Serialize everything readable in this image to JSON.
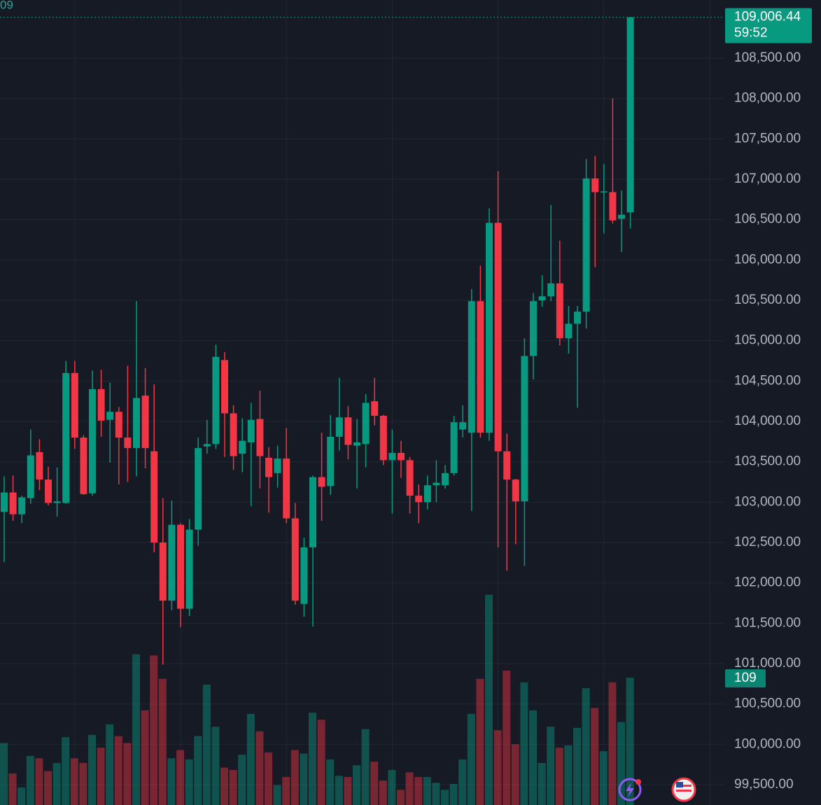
{
  "chart_data": {
    "type": "candlestick",
    "corner_text": "09",
    "open": [
      102880,
      103120,
      102850,
      103050,
      103620,
      103280,
      102990,
      102990,
      104600,
      103800,
      103110,
      104400,
      104020,
      104120,
      103800,
      103670,
      104320,
      103630,
      102500,
      101780,
      102720,
      101680,
      102660,
      103690,
      103720,
      104760,
      104100,
      103600,
      103740,
      104030,
      103550,
      103360,
      103540,
      102800,
      101740,
      102440,
      103310,
      103200,
      103810,
      104050,
      103700,
      103720,
      104250,
      104070,
      103520,
      103610,
      103520,
      103080,
      103000,
      103210,
      103210,
      103360,
      103900,
      103860,
      105490,
      103860,
      106460,
      103630,
      103280,
      103010,
      104810,
      105500,
      105550,
      105710,
      105030,
      105210,
      105360,
      107010,
      106840,
      106840,
      106510,
      106590
    ],
    "high": [
      103320,
      103330,
      103080,
      103900,
      103780,
      103440,
      103430,
      104750,
      104750,
      103830,
      104630,
      104640,
      104480,
      104180,
      104690,
      105490,
      104660,
      104460,
      103050,
      103020,
      102740,
      102790,
      103800,
      104020,
      104950,
      104860,
      104200,
      104040,
      104230,
      104380,
      103680,
      103700,
      103920,
      102990,
      102560,
      103330,
      103860,
      104080,
      104540,
      104190,
      104030,
      104340,
      104540,
      104080,
      103900,
      103760,
      103560,
      103220,
      103330,
      103520,
      103460,
      104070,
      104200,
      105640,
      105930,
      106640,
      107100,
      103850,
      103290,
      105030,
      105590,
      105810,
      106680,
      106240,
      105430,
      105430,
      107250,
      107290,
      107190,
      108000,
      106860,
      109006.44
    ],
    "low": [
      102260,
      102770,
      102740,
      102980,
      103150,
      102960,
      102820,
      102980,
      103660,
      103090,
      103080,
      103810,
      103490,
      103220,
      103250,
      103320,
      103420,
      102380,
      100990,
      101660,
      101450,
      101590,
      102460,
      103600,
      103660,
      103560,
      103400,
      103370,
      102950,
      103170,
      102870,
      103180,
      102740,
      101730,
      101580,
      101460,
      102770,
      103090,
      103640,
      103530,
      103170,
      103430,
      103950,
      103460,
      102860,
      103300,
      102860,
      102740,
      102910,
      103000,
      103170,
      103330,
      103800,
      102890,
      103800,
      103760,
      102440,
      102150,
      102480,
      102210,
      104520,
      105420,
      105490,
      104940,
      104840,
      104170,
      105150,
      105910,
      106330,
      106450,
      106100,
      106390
    ],
    "close": [
      103120,
      102850,
      103060,
      103580,
      103280,
      102990,
      103010,
      104600,
      103800,
      103100,
      104400,
      104010,
      104120,
      103800,
      103670,
      104290,
      103670,
      102500,
      101780,
      102720,
      101680,
      102660,
      103670,
      103720,
      104800,
      104100,
      103570,
      103760,
      104020,
      103570,
      103310,
      103540,
      102800,
      101780,
      102440,
      103310,
      103190,
      103810,
      104050,
      103710,
      103740,
      104230,
      104070,
      103520,
      103610,
      103520,
      103080,
      103000,
      103210,
      103240,
      103360,
      103990,
      103990,
      105490,
      103860,
      106460,
      103630,
      103280,
      103010,
      104810,
      105490,
      105550,
      105710,
      105030,
      105210,
      105360,
      107010,
      106840,
      106850,
      106490,
      106560,
      109006.44
    ],
    "volume": [
      53,
      27,
      15,
      42,
      40,
      29,
      36,
      58,
      40,
      36,
      60,
      49,
      69,
      59,
      53,
      129,
      81,
      128,
      108,
      40,
      47,
      39,
      59,
      103,
      67,
      32,
      30,
      43,
      78,
      63,
      45,
      17,
      24,
      47,
      44,
      79,
      73,
      39,
      25,
      24,
      34,
      65,
      37,
      21,
      30,
      13,
      28,
      24,
      24,
      19,
      13,
      18,
      39,
      78,
      108,
      180,
      64,
      115,
      52,
      105,
      81,
      36,
      67,
      49,
      51,
      66,
      100,
      83,
      46,
      105,
      71,
      109
    ],
    "ylim": [
      99249,
      109220
    ],
    "vlim": [
      0,
      689
    ],
    "yticks": [
      {
        "value": 99500,
        "label": "99,500.00"
      },
      {
        "value": 100000,
        "label": "100,000.00"
      },
      {
        "value": 100500,
        "label": "100,500.00"
      },
      {
        "value": 101000,
        "label": "101,000.00"
      },
      {
        "value": 101500,
        "label": "101,500.00"
      },
      {
        "value": 102000,
        "label": "102,000.00"
      },
      {
        "value": 102500,
        "label": "102,500.00"
      },
      {
        "value": 103000,
        "label": "103,000.00"
      },
      {
        "value": 103500,
        "label": "103,500.00"
      },
      {
        "value": 104000,
        "label": "104,000.00"
      },
      {
        "value": 104500,
        "label": "104,500.00"
      },
      {
        "value": 105000,
        "label": "105,000.00"
      },
      {
        "value": 105500,
        "label": "105,500.00"
      },
      {
        "value": 106000,
        "label": "106,000.00"
      },
      {
        "value": 106500,
        "label": "106,500.00"
      },
      {
        "value": 107000,
        "label": "107,000.00"
      },
      {
        "value": 107500,
        "label": "107,500.00"
      },
      {
        "value": 108000,
        "label": "108,000.00"
      },
      {
        "value": 108500,
        "label": "108,500.00"
      }
    ],
    "last_price": {
      "value": 109006.44,
      "label": "109,006.44"
    },
    "countdown": "59:52",
    "grid": true,
    "up_color": "#089981",
    "down_color": "#f23645"
  }
}
